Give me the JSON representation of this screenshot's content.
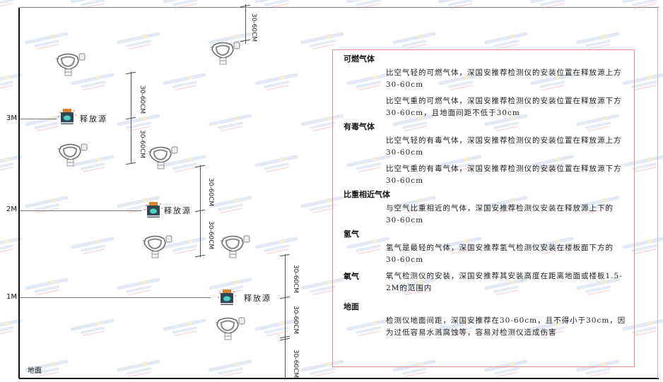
{
  "watermark": {
    "brand": "SINGOAN",
    "cn": "深国安",
    "sub": "股票代码:661434"
  },
  "levels": [
    {
      "label": "3M"
    },
    {
      "label": "2M"
    },
    {
      "label": "1M"
    }
  ],
  "ground_label": "地面",
  "source_label": "释放源",
  "dimension_label": "30-60CM",
  "colors": {
    "panel_border": "#f08a8a",
    "source_body": "#2f4756",
    "source_cap": "#d9802a",
    "source_face": "#4fd1c5"
  },
  "panel": {
    "sections": [
      {
        "heading": "可燃气体",
        "paras": [
          "比空气轻的可燃气体，深国安推荐检测仪的安装位置在释放源上方30-60cm",
          "比空气重的可燃气体，深国安推荐检测仪的安装位置在释放源下方30-60cm，且地面间距不低于30cm"
        ]
      },
      {
        "heading": "有毒气体",
        "paras": [
          "比空气轻的有毒气体，深国安推荐检测仪的安装位置在释放源上方30-60cm",
          "比空气重的有毒气体，深国安推荐检测仪的安装位置在释放源下方30-60cm"
        ]
      },
      {
        "heading": "比重相近气体",
        "paras": [
          "与空气比重相近的气体，深国安推荐检测仪安装在释放源上下的30-60cm"
        ]
      },
      {
        "heading": "氢气",
        "paras": [
          "氢气是最轻的气体，深国安推荐氢气检测仪安装在楼板面下方的30-60cm"
        ]
      },
      {
        "heading": "氧气",
        "paras": [
          "氧气检测仪的安装，深国安推荐其安装高度在距离地面或楼板1.5-2M的范围内"
        ]
      },
      {
        "heading": "地面",
        "paras": [
          "检测仪地面间距，深国安推荐在30-60cm，且不得小于30cm，因为过低容易水溅腐蚀等，容易对检测仪造成伤害"
        ]
      }
    ]
  }
}
